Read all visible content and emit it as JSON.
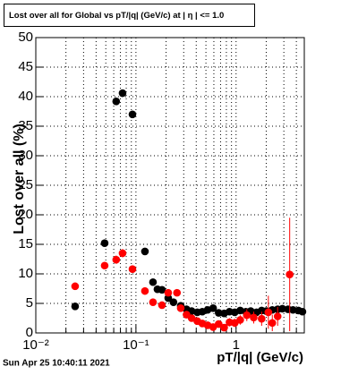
{
  "chart_data": {
    "type": "scatter",
    "title": "Lost over all for Global vs pT/|q| (GeV/c) at | η | <= 1.0",
    "x_label": "pT/|q| (GeV/c)",
    "y_label": "Lost over all (%)",
    "timestamp": "Sun Apr 25 10:40:11 2021",
    "xscale": "log",
    "grid": true,
    "xlim": [
      0.01,
      4.8
    ],
    "ylim": [
      0,
      50
    ],
    "xticks": [
      {
        "value": 0.01,
        "label": "10⁻²"
      },
      {
        "value": 0.1,
        "label": "10⁻¹"
      },
      1
    ],
    "xminor_ticks": [
      0.02,
      0.03,
      0.04,
      0.05,
      0.06,
      0.07,
      0.08,
      0.09,
      0.2,
      0.3,
      0.4,
      0.5,
      0.6,
      0.7,
      0.8,
      0.9,
      2,
      3,
      4
    ],
    "yticks": [
      0,
      5,
      10,
      15,
      20,
      25,
      30,
      35,
      40,
      45,
      50
    ],
    "series": [
      {
        "color": "#000000",
        "x": [
          0.0247,
          0.0487,
          0.0635,
          0.0735,
          0.0923,
          0.123,
          0.148,
          0.164,
          0.182,
          0.21,
          0.237,
          0.28,
          0.32,
          0.36,
          0.41,
          0.46,
          0.52,
          0.59,
          0.67,
          0.76,
          0.86,
          0.97,
          1.1,
          1.25,
          1.4,
          1.6,
          1.8,
          2.0,
          2.3,
          2.6,
          2.9,
          3.3,
          3.7,
          4.2,
          4.6
        ],
        "values": [
          4.5,
          15.2,
          39.2,
          40.6,
          37.0,
          13.8,
          8.6,
          7.4,
          7.3,
          5.9,
          5.2,
          4.6,
          4.0,
          3.7,
          3.5,
          3.6,
          3.9,
          4.2,
          3.4,
          3.3,
          3.6,
          3.5,
          3.8,
          3.6,
          3.7,
          3.5,
          3.8,
          3.7,
          3.9,
          4.0,
          4.1,
          4.0,
          3.9,
          3.8,
          3.6
        ],
        "yerr": [
          0.3,
          0.5,
          0.6,
          0.6,
          0.6,
          0.5,
          0.4,
          0.4,
          0.4,
          0.4,
          0.3,
          0.3,
          0.3,
          0.3,
          0.3,
          0.3,
          0.3,
          0.3,
          0.3,
          0.3,
          0.3,
          0.3,
          0.3,
          0.3,
          0.3,
          0.3,
          0.3,
          0.3,
          0.3,
          0.3,
          0.4,
          0.4,
          0.4,
          0.4,
          0.4
        ]
      },
      {
        "color": "#ff0000",
        "x": [
          0.0247,
          0.0487,
          0.0635,
          0.0735,
          0.0923,
          0.123,
          0.148,
          0.182,
          0.21,
          0.257,
          0.28,
          0.32,
          0.36,
          0.41,
          0.46,
          0.52,
          0.59,
          0.67,
          0.76,
          0.86,
          0.97,
          1.1,
          1.28,
          1.5,
          1.8,
          2.1,
          2.3,
          2.6,
          3.43
        ],
        "values": [
          7.9,
          11.4,
          12.4,
          13.5,
          10.8,
          7.1,
          5.2,
          4.7,
          6.8,
          6.8,
          4.2,
          3.1,
          2.5,
          2.0,
          1.6,
          1.3,
          1.0,
          1.5,
          0.9,
          1.8,
          1.7,
          2.2,
          3.0,
          2.6,
          2.4,
          3.5,
          1.7,
          2.8,
          9.9
        ],
        "yerr": [
          0.5,
          0.6,
          0.7,
          0.7,
          0.6,
          0.5,
          0.4,
          0.4,
          0.5,
          0.5,
          0.5,
          0.5,
          0.5,
          0.5,
          0.5,
          0.5,
          0.5,
          0.6,
          0.6,
          0.7,
          0.7,
          0.8,
          1.0,
          1.0,
          1.2,
          2.8,
          1.4,
          1.6,
          9.6
        ]
      }
    ]
  }
}
